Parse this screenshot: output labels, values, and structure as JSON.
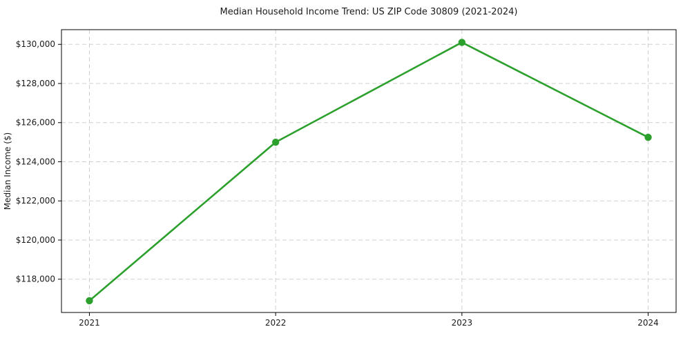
{
  "chart_data": {
    "type": "line",
    "title": "Median Household Income Trend: US ZIP Code 30809 (2021-2024)",
    "xlabel": "",
    "ylabel": "Median Income ($)",
    "x": [
      2021,
      2022,
      2023,
      2024
    ],
    "series": [
      {
        "name": "Median Household Income",
        "values": [
          116900,
          125000,
          130100,
          125250
        ]
      }
    ],
    "xticks": [
      2021,
      2022,
      2023,
      2024
    ],
    "xtick_labels": [
      "2021",
      "2022",
      "2023",
      "2024"
    ],
    "yticks": [
      118000,
      120000,
      122000,
      124000,
      126000,
      128000,
      130000
    ],
    "ytick_labels": [
      "$118,000",
      "$120,000",
      "$122,000",
      "$124,000",
      "$126,000",
      "$128,000",
      "$130,000"
    ],
    "xlim": [
      2020.85,
      2024.15
    ],
    "ylim": [
      116300,
      130750
    ],
    "grid": true,
    "legend": false,
    "colors": {
      "line": "#2ca02c",
      "marker": "#2ca02c",
      "grid": "#cfcfcf",
      "spine": "#000000",
      "text": "#1a1a1a",
      "background": "#ffffff"
    }
  }
}
